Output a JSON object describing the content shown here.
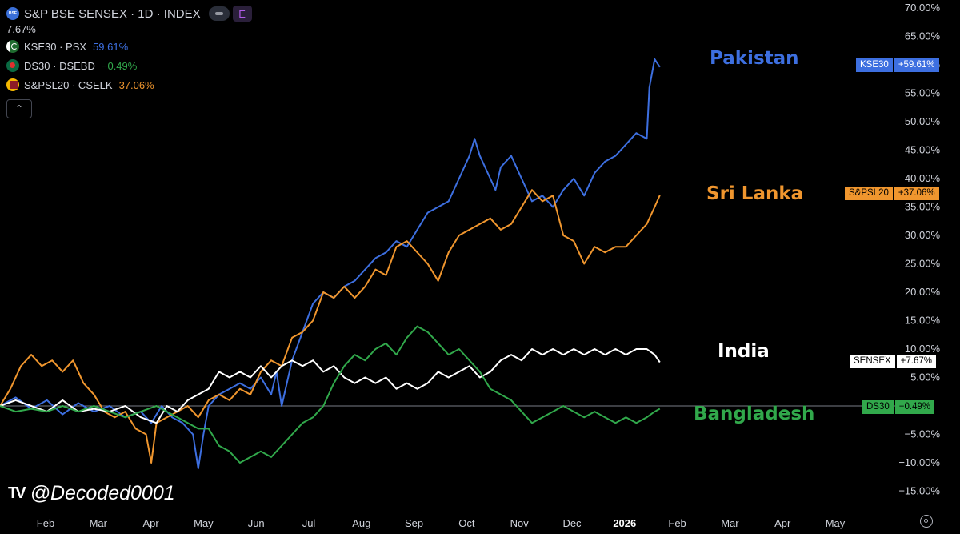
{
  "legend": {
    "main_title": "S&P BSE SENSEX · 1D · INDEX",
    "main_logo": "BSE",
    "main_value": "7.67%",
    "badge_e": "E",
    "rows": [
      {
        "name": "KSE30 · PSX",
        "value": "59.61%",
        "color": "#3d6fe0",
        "flag": "pakistan-flag-icon"
      },
      {
        "name": "DS30 · DSEBD",
        "value": "−0.49%",
        "color": "#31a84b",
        "flag": "bangladesh-flag-icon"
      },
      {
        "name": "S&PSL20 · CSELK",
        "value": "37.06%",
        "color": "#f0962e",
        "flag": "srilanka-flag-icon"
      }
    ],
    "collapse_icon": "chevron-up-icon"
  },
  "labels": {
    "pakistan": "Pakistan",
    "srilanka": "Sri Lanka",
    "india": "India",
    "bangladesh": "Bangladesh"
  },
  "tags": {
    "kse": {
      "ticker": "KSE30",
      "value": "+59.61%"
    },
    "spsl": {
      "ticker": "S&PSL20",
      "value": "+37.06%"
    },
    "sensex": {
      "ticker": "SENSEX",
      "value": "+7.67%"
    },
    "ds30": {
      "ticker": "DS30",
      "value": "−0.49%"
    }
  },
  "watermark": {
    "logo": "TV",
    "text": "@Decoded0001"
  },
  "chart_data": {
    "type": "line",
    "ylim": [
      -18,
      70
    ],
    "y_ticks": [
      70,
      65,
      60,
      55,
      50,
      45,
      40,
      35,
      30,
      25,
      20,
      15,
      10,
      5,
      0,
      -5,
      -10,
      -15
    ],
    "y_tick_labels": [
      "70.00%",
      "65.00%",
      "60.00%",
      "55.00%",
      "50.00%",
      "45.00%",
      "40.00%",
      "35.00%",
      "30.00%",
      "25.00%",
      "20.00%",
      "15.00%",
      "10.00%",
      "5.00%",
      "",
      "−5.00%",
      "−10.00%",
      "−15.00%"
    ],
    "x_ticks": [
      "Feb",
      "Mar",
      "Apr",
      "May",
      "Jun",
      "Jul",
      "Aug",
      "Sep",
      "Oct",
      "Nov",
      "Dec",
      "2026",
      "Feb",
      "Mar",
      "Apr",
      "May"
    ],
    "x_range_months": [
      0,
      16.3
    ],
    "zero_line": true,
    "series": [
      {
        "name": "KSE30",
        "color": "#3d6fe0",
        "points": [
          [
            0,
            0
          ],
          [
            0.3,
            1.5
          ],
          [
            0.6,
            -0.5
          ],
          [
            0.9,
            1
          ],
          [
            1.2,
            -1.5
          ],
          [
            1.5,
            0.5
          ],
          [
            1.8,
            -1
          ],
          [
            2.1,
            0
          ],
          [
            2.4,
            -2
          ],
          [
            2.7,
            -1
          ],
          [
            2.9,
            -3
          ],
          [
            3.1,
            0
          ],
          [
            3.3,
            -2
          ],
          [
            3.5,
            -3
          ],
          [
            3.7,
            -5
          ],
          [
            3.8,
            -11
          ],
          [
            3.9,
            -5
          ],
          [
            4.0,
            0
          ],
          [
            4.2,
            2
          ],
          [
            4.4,
            3
          ],
          [
            4.6,
            4
          ],
          [
            4.8,
            3
          ],
          [
            5.0,
            5
          ],
          [
            5.2,
            2
          ],
          [
            5.3,
            6
          ],
          [
            5.4,
            0
          ],
          [
            5.5,
            4
          ],
          [
            5.6,
            8
          ],
          [
            5.8,
            13
          ],
          [
            6.0,
            18
          ],
          [
            6.2,
            20
          ],
          [
            6.4,
            19
          ],
          [
            6.6,
            21
          ],
          [
            6.8,
            22
          ],
          [
            7.0,
            24
          ],
          [
            7.2,
            26
          ],
          [
            7.4,
            27
          ],
          [
            7.6,
            29
          ],
          [
            7.8,
            28
          ],
          [
            8.0,
            31
          ],
          [
            8.2,
            34
          ],
          [
            8.4,
            35
          ],
          [
            8.6,
            36
          ],
          [
            8.8,
            40
          ],
          [
            9.0,
            44
          ],
          [
            9.1,
            47
          ],
          [
            9.2,
            44
          ],
          [
            9.4,
            40
          ],
          [
            9.5,
            38
          ],
          [
            9.6,
            42
          ],
          [
            9.8,
            44
          ],
          [
            10.0,
            40
          ],
          [
            10.2,
            36
          ],
          [
            10.4,
            37
          ],
          [
            10.6,
            35
          ],
          [
            10.8,
            38
          ],
          [
            11.0,
            40
          ],
          [
            11.2,
            37
          ],
          [
            11.4,
            41
          ],
          [
            11.6,
            43
          ],
          [
            11.8,
            44
          ],
          [
            12.0,
            46
          ],
          [
            12.2,
            48
          ],
          [
            12.4,
            47
          ],
          [
            12.45,
            56
          ],
          [
            12.55,
            61
          ],
          [
            12.65,
            59.61
          ]
        ]
      },
      {
        "name": "S&PSL20",
        "color": "#f0962e",
        "points": [
          [
            0,
            0
          ],
          [
            0.2,
            3
          ],
          [
            0.4,
            7
          ],
          [
            0.6,
            9
          ],
          [
            0.8,
            7
          ],
          [
            1.0,
            8
          ],
          [
            1.2,
            6
          ],
          [
            1.4,
            8
          ],
          [
            1.6,
            4
          ],
          [
            1.8,
            2
          ],
          [
            2.0,
            -1
          ],
          [
            2.2,
            -2
          ],
          [
            2.4,
            -1
          ],
          [
            2.6,
            -4
          ],
          [
            2.8,
            -5
          ],
          [
            2.9,
            -10
          ],
          [
            3.0,
            -3
          ],
          [
            3.2,
            -2
          ],
          [
            3.4,
            -1
          ],
          [
            3.6,
            0
          ],
          [
            3.8,
            -2
          ],
          [
            4.0,
            1
          ],
          [
            4.2,
            2
          ],
          [
            4.4,
            1
          ],
          [
            4.6,
            3
          ],
          [
            4.8,
            2
          ],
          [
            5.0,
            6
          ],
          [
            5.2,
            8
          ],
          [
            5.4,
            7
          ],
          [
            5.6,
            12
          ],
          [
            5.8,
            13
          ],
          [
            6.0,
            15
          ],
          [
            6.2,
            20
          ],
          [
            6.4,
            19
          ],
          [
            6.6,
            21
          ],
          [
            6.8,
            19
          ],
          [
            7.0,
            21
          ],
          [
            7.2,
            24
          ],
          [
            7.4,
            23
          ],
          [
            7.6,
            28
          ],
          [
            7.8,
            29
          ],
          [
            8.0,
            27
          ],
          [
            8.2,
            25
          ],
          [
            8.4,
            22
          ],
          [
            8.6,
            27
          ],
          [
            8.8,
            30
          ],
          [
            9.0,
            31
          ],
          [
            9.2,
            32
          ],
          [
            9.4,
            33
          ],
          [
            9.6,
            31
          ],
          [
            9.8,
            32
          ],
          [
            10.0,
            35
          ],
          [
            10.2,
            38
          ],
          [
            10.4,
            36
          ],
          [
            10.6,
            37
          ],
          [
            10.8,
            30
          ],
          [
            11.0,
            29
          ],
          [
            11.2,
            25
          ],
          [
            11.4,
            28
          ],
          [
            11.6,
            27
          ],
          [
            11.8,
            28
          ],
          [
            12.0,
            28
          ],
          [
            12.2,
            30
          ],
          [
            12.4,
            32
          ],
          [
            12.55,
            35
          ],
          [
            12.65,
            37.06
          ]
        ]
      },
      {
        "name": "SENSEX",
        "color": "#ffffff",
        "points": [
          [
            0,
            0
          ],
          [
            0.3,
            1
          ],
          [
            0.6,
            0
          ],
          [
            0.9,
            -1
          ],
          [
            1.2,
            1
          ],
          [
            1.5,
            -1
          ],
          [
            1.8,
            -0.5
          ],
          [
            2.1,
            -1
          ],
          [
            2.4,
            0
          ],
          [
            2.7,
            -2
          ],
          [
            3.0,
            -3
          ],
          [
            3.2,
            0
          ],
          [
            3.4,
            -1
          ],
          [
            3.6,
            1
          ],
          [
            3.8,
            2
          ],
          [
            4.0,
            3
          ],
          [
            4.2,
            6
          ],
          [
            4.4,
            5
          ],
          [
            4.6,
            6
          ],
          [
            4.8,
            5
          ],
          [
            5.0,
            7
          ],
          [
            5.2,
            5
          ],
          [
            5.4,
            7
          ],
          [
            5.6,
            8
          ],
          [
            5.8,
            7
          ],
          [
            6.0,
            8
          ],
          [
            6.2,
            6
          ],
          [
            6.4,
            7
          ],
          [
            6.6,
            5
          ],
          [
            6.8,
            4
          ],
          [
            7.0,
            5
          ],
          [
            7.2,
            4
          ],
          [
            7.4,
            5
          ],
          [
            7.6,
            3
          ],
          [
            7.8,
            4
          ],
          [
            8.0,
            3
          ],
          [
            8.2,
            4
          ],
          [
            8.4,
            6
          ],
          [
            8.6,
            5
          ],
          [
            8.8,
            6
          ],
          [
            9.0,
            7
          ],
          [
            9.2,
            5
          ],
          [
            9.4,
            6
          ],
          [
            9.6,
            8
          ],
          [
            9.8,
            9
          ],
          [
            10.0,
            8
          ],
          [
            10.2,
            10
          ],
          [
            10.4,
            9
          ],
          [
            10.6,
            10
          ],
          [
            10.8,
            9
          ],
          [
            11.0,
            10
          ],
          [
            11.2,
            9
          ],
          [
            11.4,
            10
          ],
          [
            11.6,
            9
          ],
          [
            11.8,
            10
          ],
          [
            12.0,
            9
          ],
          [
            12.2,
            10
          ],
          [
            12.4,
            10
          ],
          [
            12.55,
            9
          ],
          [
            12.65,
            7.67
          ]
        ]
      },
      {
        "name": "DS30",
        "color": "#31a84b",
        "points": [
          [
            0,
            0
          ],
          [
            0.3,
            -1
          ],
          [
            0.6,
            -0.5
          ],
          [
            0.9,
            -1
          ],
          [
            1.2,
            0
          ],
          [
            1.5,
            -1
          ],
          [
            1.8,
            0
          ],
          [
            2.1,
            -1
          ],
          [
            2.4,
            -2
          ],
          [
            2.7,
            -1
          ],
          [
            3.0,
            0
          ],
          [
            3.2,
            -1
          ],
          [
            3.4,
            -2
          ],
          [
            3.6,
            -3
          ],
          [
            3.8,
            -4
          ],
          [
            4.0,
            -4
          ],
          [
            4.2,
            -7
          ],
          [
            4.4,
            -8
          ],
          [
            4.6,
            -10
          ],
          [
            4.8,
            -9
          ],
          [
            5.0,
            -8
          ],
          [
            5.2,
            -9
          ],
          [
            5.4,
            -7
          ],
          [
            5.6,
            -5
          ],
          [
            5.8,
            -3
          ],
          [
            6.0,
            -2
          ],
          [
            6.2,
            0
          ],
          [
            6.4,
            4
          ],
          [
            6.6,
            7
          ],
          [
            6.8,
            9
          ],
          [
            7.0,
            8
          ],
          [
            7.2,
            10
          ],
          [
            7.4,
            11
          ],
          [
            7.6,
            9
          ],
          [
            7.8,
            12
          ],
          [
            8.0,
            14
          ],
          [
            8.2,
            13
          ],
          [
            8.4,
            11
          ],
          [
            8.6,
            9
          ],
          [
            8.8,
            10
          ],
          [
            9.0,
            8
          ],
          [
            9.2,
            6
          ],
          [
            9.4,
            3
          ],
          [
            9.6,
            2
          ],
          [
            9.8,
            1
          ],
          [
            10.0,
            -1
          ],
          [
            10.2,
            -3
          ],
          [
            10.4,
            -2
          ],
          [
            10.6,
            -1
          ],
          [
            10.8,
            0
          ],
          [
            11.0,
            -1
          ],
          [
            11.2,
            -2
          ],
          [
            11.4,
            -1
          ],
          [
            11.6,
            -2
          ],
          [
            11.8,
            -3
          ],
          [
            12.0,
            -2
          ],
          [
            12.2,
            -3
          ],
          [
            12.4,
            -2
          ],
          [
            12.55,
            -1
          ],
          [
            12.65,
            -0.49
          ]
        ]
      }
    ]
  }
}
